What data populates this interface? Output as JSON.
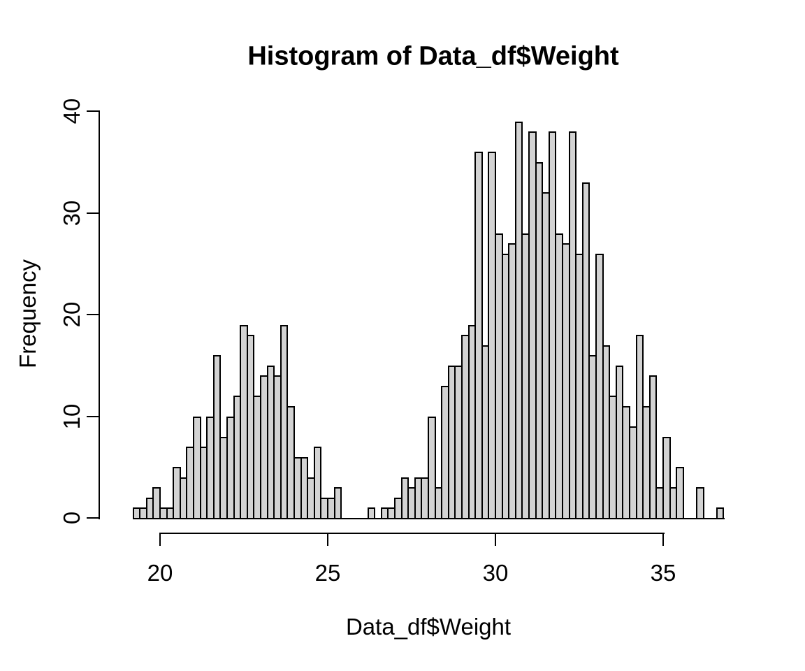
{
  "figure": {
    "title": "Histogram of Data_df$Weight",
    "xlabel": "Data_df$Weight",
    "ylabel": "Frequency"
  },
  "chart_data": {
    "type": "bar",
    "subtype": "histogram",
    "title": "Histogram of Data_df$Weight",
    "xlabel": "Data_df$Weight",
    "ylabel": "Frequency",
    "bin_start": 19.2,
    "bin_width": 0.2,
    "counts": [
      1,
      1,
      2,
      3,
      1,
      1,
      5,
      4,
      7,
      10,
      7,
      10,
      16,
      8,
      10,
      12,
      19,
      18,
      12,
      14,
      15,
      14,
      19,
      11,
      6,
      6,
      4,
      7,
      2,
      2,
      3,
      0,
      0,
      0,
      0,
      1,
      0,
      1,
      1,
      2,
      4,
      3,
      4,
      4,
      10,
      3,
      13,
      15,
      15,
      18,
      19,
      36,
      17,
      36,
      28,
      26,
      27,
      39,
      28,
      38,
      35,
      32,
      38,
      28,
      27,
      38,
      26,
      33,
      16,
      26,
      17,
      12,
      15,
      11,
      9,
      18,
      11,
      14,
      3,
      8,
      3,
      5,
      0,
      0,
      3,
      0,
      0,
      1
    ],
    "x_ticks": [
      "20",
      "25",
      "30",
      "35"
    ],
    "x_tick_values": [
      20,
      25,
      30,
      35
    ],
    "y_ticks": [
      "0",
      "10",
      "20",
      "30",
      "40"
    ],
    "y_tick_values": [
      0,
      10,
      20,
      30,
      40
    ],
    "xlim": [
      19.2,
      36.8
    ],
    "ylim": [
      0,
      40
    ],
    "grid": false,
    "legend": "none",
    "bar_fill": "#d3d3d3",
    "bar_border": "#000000",
    "axis_color": "#000000",
    "background": "#ffffff"
  }
}
